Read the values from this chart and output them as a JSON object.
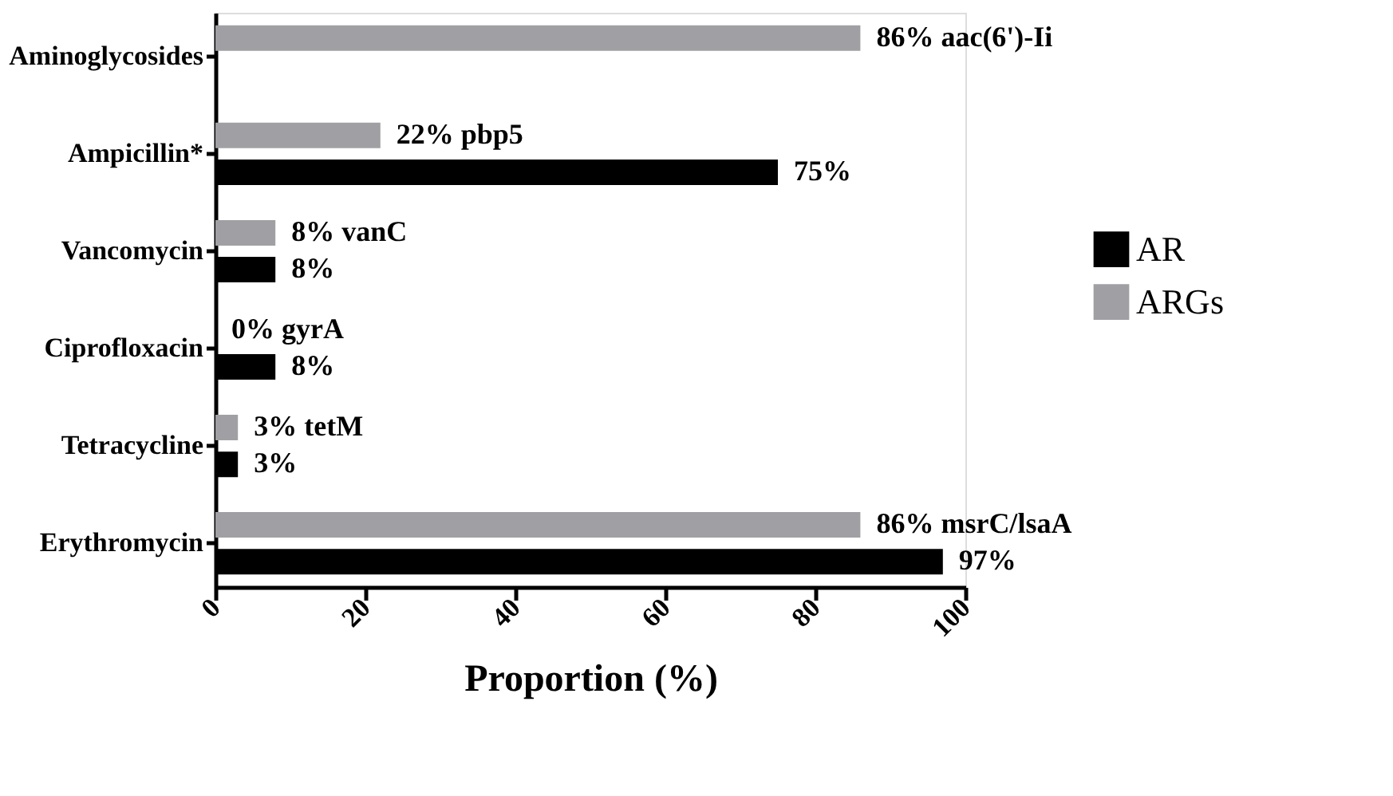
{
  "chart_data": {
    "type": "bar",
    "orientation": "horizontal",
    "xlabel": "Proportion (%)",
    "categories": [
      "Aminoglycosides",
      "Ampicillin*",
      "Vancomycin",
      "Ciprofloxacin",
      "Tetracycline",
      "Erythromycin"
    ],
    "series": [
      {
        "name": "AR",
        "color": "#000000",
        "values": [
          null,
          75,
          8,
          8,
          3,
          97
        ],
        "value_labels": [
          null,
          "75%",
          "8%",
          "8%",
          "3%",
          "97%"
        ]
      },
      {
        "name": "ARGs",
        "color": "#a0a0a4",
        "values": [
          86,
          22,
          8,
          0,
          3,
          86
        ],
        "value_labels": [
          "86%  aac(6')-Ii",
          "22% pbp5",
          "8% vanC",
          "0% gyrA",
          "3% tetM",
          "86% msrC/lsaA"
        ]
      }
    ],
    "xlim": [
      0,
      100
    ],
    "xticks": [
      0,
      20,
      40,
      60,
      80,
      100
    ],
    "grid": false,
    "legend": "right"
  }
}
